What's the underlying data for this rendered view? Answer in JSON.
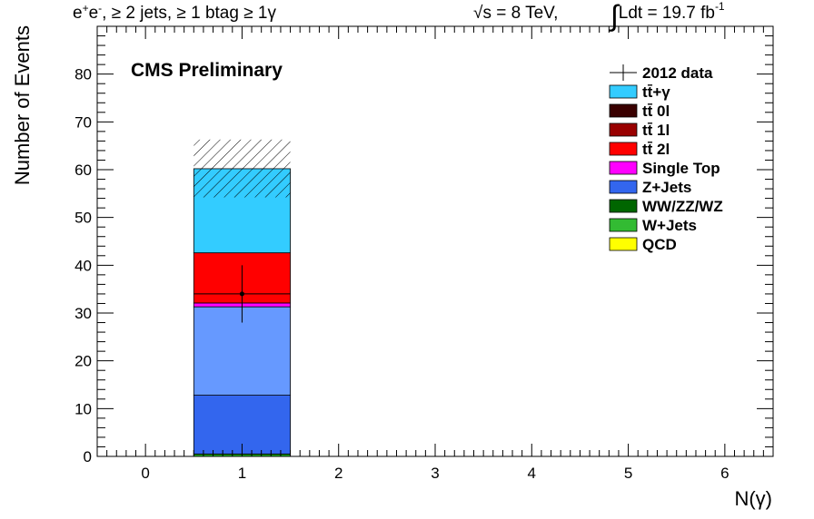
{
  "header": {
    "selection_prefix": "e",
    "selection_plus_sup": "+",
    "selection_e2": "e",
    "selection_minus_sup": "-",
    "selection_rest": ", ≥ 2 jets, ≥ 1 btag ≥ 1γ",
    "energy_root": "√",
    "energy_text": "s = 8 TeV,",
    "lumi_integral": "∫",
    "lumi_text": "Ldt = 19.7 fb",
    "lumi_sup": "-1"
  },
  "cms_label": "CMS Preliminary",
  "chart_data": {
    "type": "bar",
    "stacked": true,
    "xlabel": "N(γ)",
    "ylabel": "Number of Events",
    "xlim": [
      -0.5,
      6.5
    ],
    "ylim": [
      0,
      90
    ],
    "xticks": [
      "0",
      "1",
      "2",
      "3",
      "4",
      "5",
      "6"
    ],
    "yticks": [
      "0",
      "10",
      "20",
      "30",
      "40",
      "50",
      "60",
      "70",
      "80"
    ],
    "bin": {
      "x_low": 0.5,
      "x_high": 1.5
    },
    "stack": [
      {
        "name": "W+Jets",
        "value": 0.5,
        "color": "#1f9e1f"
      },
      {
        "name": "Z+Jets",
        "value": 12.3,
        "color": "#3366ee"
      },
      {
        "name": "",
        "value": 18.5,
        "color": "#6699ff"
      },
      {
        "name": "Single Top",
        "value": 0.8,
        "color": "#ff00ff"
      },
      {
        "name": "tt̄ 2l",
        "value": 10.5,
        "color": "#ff0000"
      },
      {
        "name": "tt̄+γ",
        "value": 17.6,
        "color": "#33ccff"
      }
    ],
    "uncertainty": {
      "low": 54.2,
      "high": 66.3
    },
    "data_points": [
      {
        "x": 1,
        "y": 34,
        "err_low": 6,
        "err_high": 6
      }
    ],
    "legend_position": "top-right",
    "legend": [
      {
        "label": "2012 data",
        "type": "marker",
        "color": "#000000"
      },
      {
        "label": "tt̄+γ",
        "type": "box",
        "color": "#33ccff"
      },
      {
        "label": "tt̄ 0l",
        "type": "box",
        "color": "#3a0000"
      },
      {
        "label": "tt̄ 1l",
        "type": "box",
        "color": "#990000"
      },
      {
        "label": "tt̄ 2l",
        "type": "box",
        "color": "#ff0000"
      },
      {
        "label": "Single Top",
        "type": "box",
        "color": "#ff00ff"
      },
      {
        "label": "Z+Jets",
        "type": "box",
        "color": "#3366ee"
      },
      {
        "label": "WW/ZZ/WZ",
        "type": "box",
        "color": "#006600"
      },
      {
        "label": "W+Jets",
        "type": "box",
        "color": "#33bb33"
      },
      {
        "label": "QCD",
        "type": "box",
        "color": "#ffff00"
      }
    ]
  },
  "colors": {
    "cms_label": "#0000cc"
  }
}
